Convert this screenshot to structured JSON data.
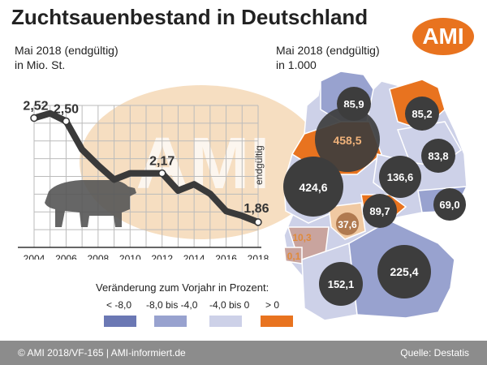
{
  "title": "Zuchtsauenbestand in Deutschland",
  "logo_text": "AMI",
  "watermark_text": "AMI",
  "left_chart": {
    "subtitle_line1": "Mai 2018 (endgültig)",
    "subtitle_line2": "in Mio. St."
  },
  "right_chart": {
    "subtitle_line1": "Mai 2018 (endgültig)",
    "subtitle_line2": "in 1.000"
  },
  "legend": {
    "title": "Veränderung zum Vorjahr in Prozent:",
    "items": [
      {
        "label": "< -8,0",
        "color": "#6b78b4"
      },
      {
        "label": "-8,0 bis -4,0",
        "color": "#98a2cf"
      },
      {
        "label": "-4,0 bis 0",
        "color": "#cdd1e8"
      },
      {
        "label": "> 0",
        "color": "#e8731f"
      }
    ]
  },
  "footer": {
    "left": "© AMI 2018/VF-165 | AMI-informiert.de",
    "right": "Quelle: Destatis"
  },
  "chart_data": [
    {
      "type": "line",
      "title": "",
      "xlabel": "",
      "ylabel": "",
      "x_ticks": [
        "2004",
        "2006",
        "2008",
        "2010",
        "2012",
        "2014",
        "2016",
        "2018"
      ],
      "x": [
        2004,
        2005,
        2006,
        2007,
        2008,
        2009,
        2010,
        2011,
        2012,
        2013,
        2014,
        2015,
        2016,
        2017,
        2018
      ],
      "values": [
        2.52,
        2.55,
        2.5,
        2.32,
        2.22,
        2.13,
        2.17,
        2.17,
        2.17,
        2.06,
        2.1,
        2.04,
        1.93,
        1.9,
        1.86
      ],
      "xlim": [
        2004,
        2018
      ],
      "ylim": [
        1.7,
        2.6
      ],
      "grid": true,
      "data_labels": [
        {
          "x": 2004,
          "text": "2,52"
        },
        {
          "x": 2006,
          "text": "2,50"
        },
        {
          "x": 2012,
          "text": "2,17"
        },
        {
          "x": 2018,
          "text": "1,86"
        }
      ],
      "annotation": "endgültig",
      "line_color": "#3a3a3a"
    },
    {
      "type": "bubble-map",
      "bubbles": [
        {
          "label": "85,9",
          "value": 85.9,
          "style": "dark"
        },
        {
          "label": "85,2",
          "value": 85.2,
          "style": "dark"
        },
        {
          "label": "458,5",
          "value": 458.5,
          "style": "dark-orange-text"
        },
        {
          "label": "83,8",
          "value": 83.8,
          "style": "dark"
        },
        {
          "label": "136,6",
          "value": 136.6,
          "style": "dark"
        },
        {
          "label": "424,6",
          "value": 424.6,
          "style": "dark"
        },
        {
          "label": "69,0",
          "value": 69.0,
          "style": "dark"
        },
        {
          "label": "89,7",
          "value": 89.7,
          "style": "dark"
        },
        {
          "label": "37,6",
          "value": 37.6,
          "style": "orange"
        },
        {
          "label": "10,3",
          "value": 10.3,
          "style": "light-orange"
        },
        {
          "label": "0,1",
          "value": 0.1,
          "style": "light-orange"
        },
        {
          "label": "152,1",
          "value": 152.1,
          "style": "dark"
        },
        {
          "label": "225,4",
          "value": 225.4,
          "style": "dark"
        }
      ]
    }
  ]
}
